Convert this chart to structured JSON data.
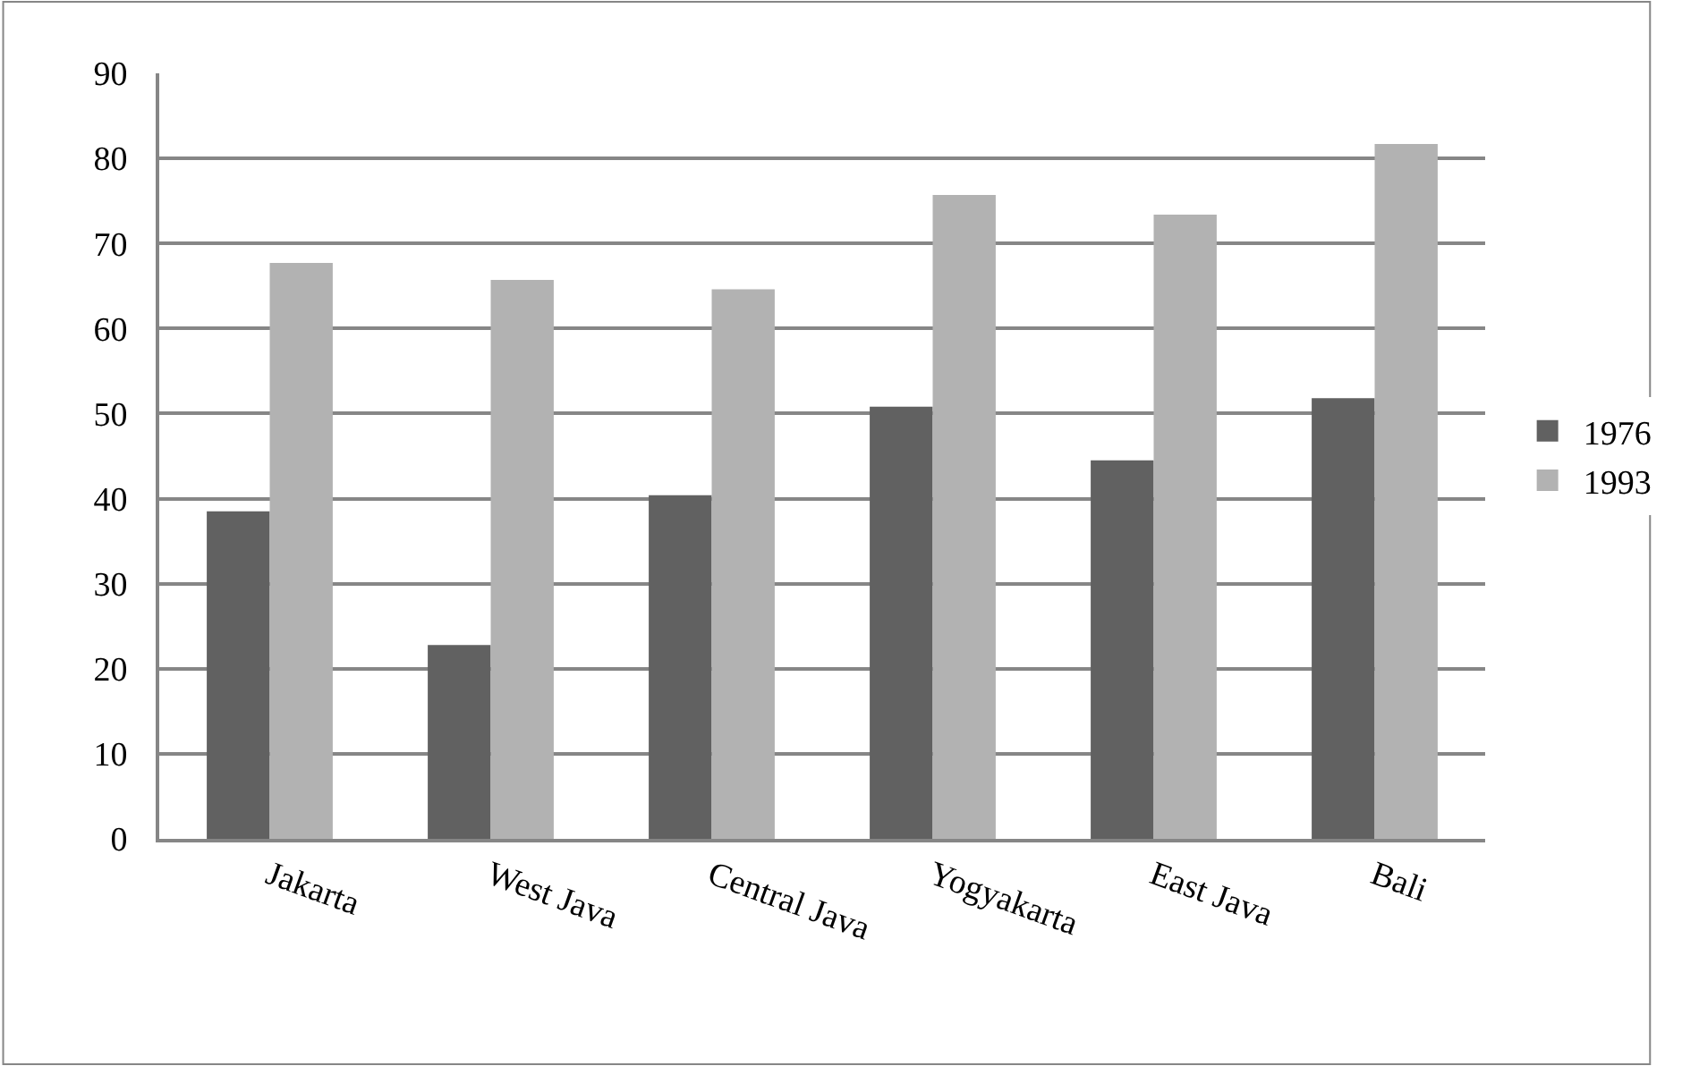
{
  "chart_data": {
    "type": "bar",
    "categories": [
      "Jakarta",
      "West Java",
      "Central Java",
      "Yogyakarta",
      "East Java",
      "Bali"
    ],
    "series": [
      {
        "name": "1976",
        "color": "#616161",
        "values": [
          38.5,
          22.8,
          40.4,
          50.8,
          44.5,
          51.8
        ]
      },
      {
        "name": "1993",
        "color": "#b2b2b2",
        "values": [
          67.7,
          65.7,
          64.6,
          75.7,
          73.4,
          81.7
        ]
      }
    ],
    "ylim": [
      0,
      90
    ],
    "yticks": [
      0,
      10,
      20,
      30,
      40,
      50,
      60,
      70,
      80,
      90
    ],
    "grid": "y",
    "legend": "right"
  }
}
